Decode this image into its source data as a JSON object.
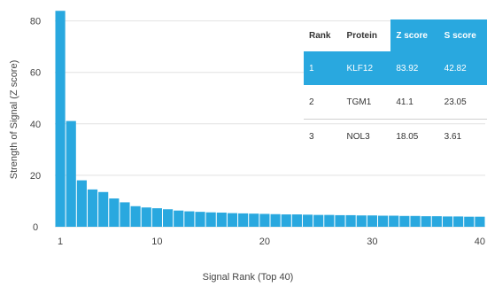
{
  "chart_data": {
    "type": "bar",
    "xlabel": "Signal Rank (Top 40)",
    "ylabel": "Strength of Signal (Z score)",
    "ylim": [
      0,
      84
    ],
    "xlim": [
      1,
      40
    ],
    "x_ticks": [
      1,
      10,
      20,
      30,
      40
    ],
    "y_ticks": [
      0,
      20,
      40,
      60,
      80
    ],
    "grid": "horizontal",
    "bar_color": "#29a8df",
    "x": [
      1,
      2,
      3,
      4,
      5,
      6,
      7,
      8,
      9,
      10,
      11,
      12,
      13,
      14,
      15,
      16,
      17,
      18,
      19,
      20,
      21,
      22,
      23,
      24,
      25,
      26,
      27,
      28,
      29,
      30,
      31,
      32,
      33,
      34,
      35,
      36,
      37,
      38,
      39,
      40
    ],
    "values": [
      83.92,
      41.1,
      18.05,
      14.5,
      13.5,
      11.0,
      9.5,
      8.0,
      7.5,
      7.2,
      6.8,
      6.3,
      6.0,
      5.8,
      5.6,
      5.5,
      5.3,
      5.2,
      5.1,
      5.0,
      4.9,
      4.8,
      4.8,
      4.7,
      4.6,
      4.6,
      4.5,
      4.5,
      4.4,
      4.4,
      4.3,
      4.3,
      4.2,
      4.2,
      4.1,
      4.1,
      4.0,
      4.0,
      3.9,
      3.9
    ],
    "table": {
      "headers": [
        "Rank",
        "Protein",
        "Z score",
        "S score"
      ],
      "rows": [
        [
          "1",
          "KLF12",
          "83.92",
          "42.82"
        ],
        [
          "2",
          "TGM1",
          "41.1",
          "23.05"
        ],
        [
          "3",
          "NOL3",
          "18.05",
          "3.61"
        ]
      ],
      "highlight_color": "#29a8df"
    }
  }
}
